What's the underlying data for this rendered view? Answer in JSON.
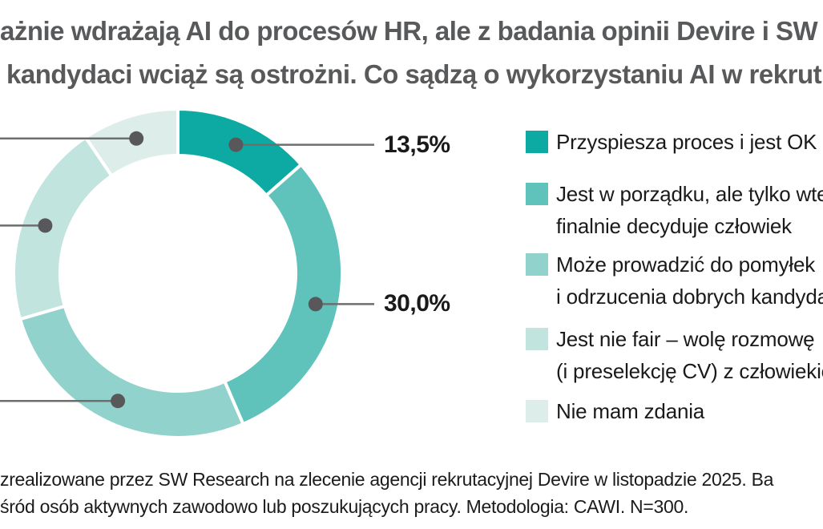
{
  "title": {
    "line1": "ażnie wdrażają AI do procesów HR, ale z badania opinii Devire i SW",
    "line2": "kandydaci wciąż są ostrożni. Co sądzą o wykorzystaniu AI w rekrut"
  },
  "chart_data": {
    "type": "pie",
    "subtype": "donut",
    "start_angle_deg": 0,
    "direction": "clockwise",
    "unit": "%",
    "slices": [
      {
        "label": "Przyspiesza proces i jest OK",
        "value": 13.5,
        "value_label": "13,5%",
        "color": "#0caaa2",
        "callout": "right"
      },
      {
        "label": "Jest w porządku, ale tylko wte finalnie decyduje człowiek",
        "value": 30.0,
        "value_label": "30,0%",
        "color": "#5fc3bc",
        "callout": "right"
      },
      {
        "label": "Może prowadzić do pomyłek i odrzucenia dobrych kandyda",
        "value": 27.0,
        "color": "#92d2cc",
        "callout": "left"
      },
      {
        "label": "Jest nie fair – wolę rozmowę (i preselekcję CV) z człowiekie",
        "value": 20.0,
        "color": "#c2e4df",
        "callout": "left"
      },
      {
        "label": "Nie mam zdania",
        "value": 9.5,
        "color": "#ddeeea",
        "callout": "left"
      }
    ],
    "leader_line_color": "#6e6e6e",
    "leader_dot_color": "#58585a",
    "separator_color": "#ffffff"
  },
  "legend": {
    "items": [
      {
        "color": "#0caaa2",
        "lines": [
          "Przyspiesza proces i jest OK"
        ]
      },
      {
        "color": "#5fc3bc",
        "lines": [
          "Jest w porządku, ale tylko wte",
          "finalnie decyduje człowiek"
        ]
      },
      {
        "color": "#92d2cc",
        "lines": [
          "Może prowadzić do pomyłek",
          "i odrzucenia dobrych kandyda"
        ]
      },
      {
        "color": "#c2e4df",
        "lines": [
          "Jest nie fair – wolę rozmowę",
          "(i preselekcję CV) z człowiekie"
        ]
      },
      {
        "color": "#ddeeea",
        "lines": [
          "Nie mam zdania"
        ]
      }
    ]
  },
  "footer": {
    "line1": "zrealizowane przez SW Research na zlecenie agencji rekrutacyjnej Devire w listopadzie 2025. Ba",
    "line2": "śród osób aktywnych zawodowo lub poszukujących pracy. Metodologia: CAWI. N=300."
  }
}
